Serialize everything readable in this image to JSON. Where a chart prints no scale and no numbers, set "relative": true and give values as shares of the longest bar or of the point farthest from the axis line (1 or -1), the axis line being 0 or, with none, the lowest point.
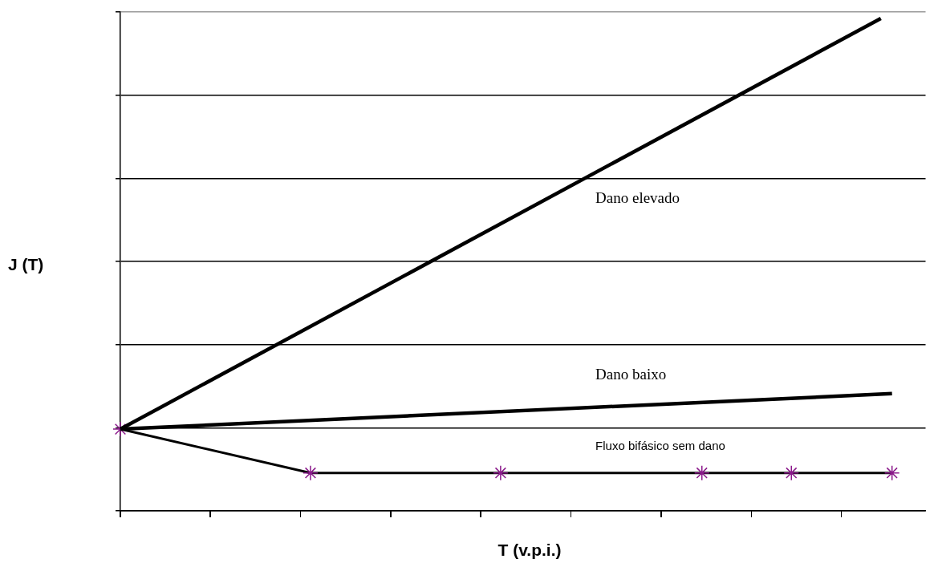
{
  "chart_data": {
    "type": "line",
    "xlabel": "T (v.p.i.)",
    "ylabel": "J (T)",
    "relative": true,
    "grid": "y",
    "legend": false,
    "line_style": "solid",
    "categories": [
      null,
      null,
      null,
      null,
      null,
      null,
      null,
      null,
      null,
      null,
      null,
      null,
      null,
      null,
      null,
      null,
      null,
      null,
      null,
      null,
      null,
      null,
      null,
      null,
      null,
      null,
      null,
      null,
      null,
      null,
      null,
      null,
      null,
      null,
      null,
      null,
      null,
      null,
      null,
      null,
      null,
      null,
      null,
      null,
      null,
      null,
      null,
      null,
      null,
      null,
      null,
      null,
      null,
      null,
      null,
      null,
      null,
      null,
      null,
      null,
      null,
      null,
      null,
      null,
      null,
      null,
      null,
      null,
      null,
      null,
      null,
      null,
      null
    ],
    "series": [
      {
        "name": "Dano elevado",
        "color": "#000000",
        "marker": "none",
        "values": [
          0.166,
          null,
          null,
          null,
          null,
          null,
          null,
          null,
          null,
          null,
          null,
          null,
          null,
          null,
          null,
          null,
          null,
          null,
          null,
          null,
          null,
          null,
          null,
          null,
          null,
          null,
          null,
          null,
          null,
          null,
          null,
          null,
          null,
          null,
          null,
          null,
          null,
          null,
          null,
          null,
          null,
          null,
          null,
          null,
          null,
          null,
          null,
          null,
          null,
          null,
          null,
          null,
          null,
          null,
          null,
          null,
          null,
          null,
          null,
          null,
          null,
          null,
          null,
          null,
          null,
          null,
          null,
          null,
          1,
          null,
          null,
          null,
          null
        ]
      },
      {
        "name": "Dano baixo",
        "color": "#000000",
        "marker": "none",
        "values": [
          0.166,
          null,
          null,
          null,
          null,
          null,
          null,
          null,
          null,
          null,
          null,
          null,
          null,
          null,
          null,
          null,
          null,
          null,
          null,
          null,
          null,
          null,
          null,
          null,
          null,
          null,
          null,
          null,
          null,
          null,
          null,
          null,
          null,
          null,
          null,
          null,
          null,
          null,
          null,
          null,
          null,
          null,
          null,
          null,
          null,
          null,
          null,
          null,
          null,
          null,
          null,
          null,
          null,
          null,
          null,
          null,
          null,
          null,
          null,
          null,
          null,
          null,
          null,
          null,
          null,
          null,
          null,
          null,
          null,
          0.238,
          null,
          null,
          null
        ]
      },
      {
        "name": "Fluxo bifásico sem dano",
        "color": "#000000",
        "marker": "cross",
        "values": [
          0.166,
          null,
          null,
          null,
          null,
          null,
          null,
          null,
          null,
          null,
          null,
          null,
          null,
          null,
          null,
          null,
          null,
          0.077,
          null,
          null,
          null,
          null,
          null,
          null,
          null,
          null,
          null,
          null,
          null,
          null,
          null,
          null,
          null,
          null,
          0.077,
          null,
          null,
          null,
          null,
          null,
          null,
          null,
          null,
          null,
          null,
          null,
          null,
          null,
          null,
          null,
          null,
          null,
          0.077,
          null,
          null,
          null,
          null,
          null,
          null,
          null,
          0.077,
          null,
          null,
          null,
          null,
          null,
          null,
          null,
          null,
          0.077,
          null,
          null,
          null
        ],
        "colors": [
          "#8b1a8b",
          null,
          null,
          null,
          null,
          null,
          null,
          null,
          null,
          null,
          null,
          null,
          null,
          null,
          null,
          null,
          null,
          "#8b1a8b",
          null,
          null,
          null,
          null,
          null,
          null,
          null,
          null,
          null,
          null,
          null,
          null,
          null,
          null,
          null,
          null,
          "#8b1a8b",
          null,
          null,
          null,
          null,
          null,
          null,
          null,
          null,
          null,
          null,
          null,
          null,
          null,
          null,
          null,
          null,
          null,
          "#8b1a8b",
          null,
          null,
          null,
          null,
          null,
          null,
          null,
          "#8b1a8b",
          null,
          null,
          null,
          null,
          null,
          null,
          null,
          null,
          "#8b1a8b",
          null,
          null,
          null
        ]
      }
    ]
  }
}
